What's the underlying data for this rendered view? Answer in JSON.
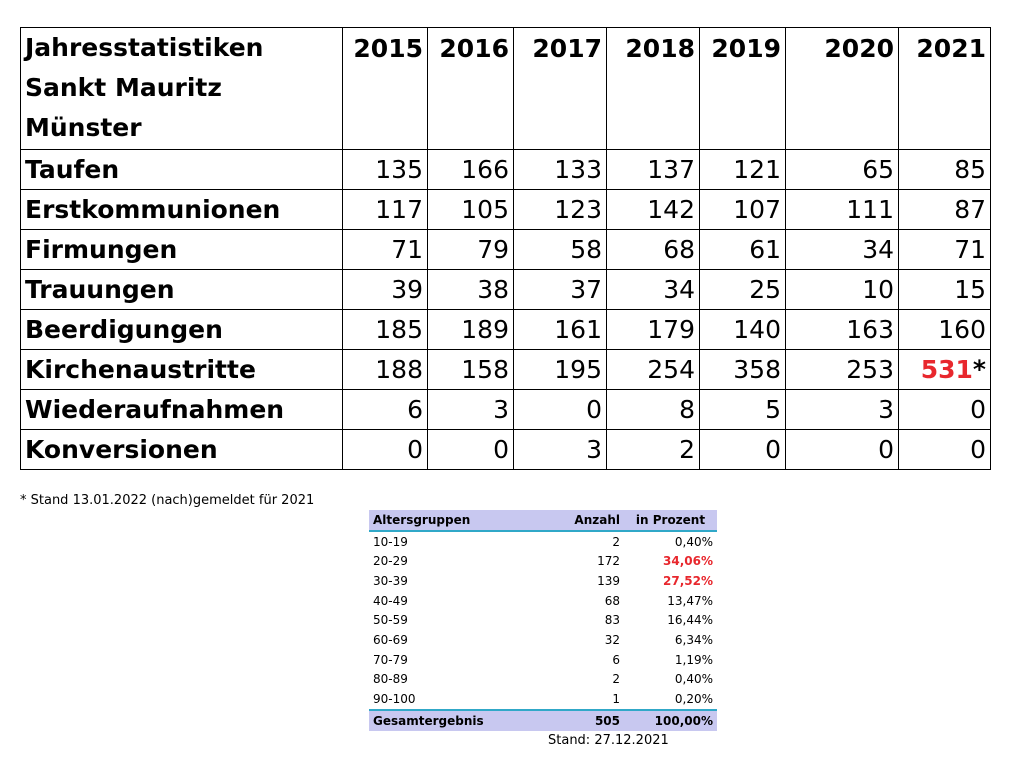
{
  "main_table": {
    "title_lines": [
      "Jahresstatistiken",
      "Sankt Mauritz",
      "Münster"
    ],
    "years": [
      "2015",
      "2016",
      "2017",
      "2018",
      "2019",
      "2020",
      "2021"
    ],
    "rows": [
      {
        "label": "Taufen",
        "values": [
          "135",
          "166",
          "133",
          "137",
          "121",
          "65",
          "85"
        ]
      },
      {
        "label": "Erstkommunionen",
        "values": [
          "117",
          "105",
          "123",
          "142",
          "107",
          "111",
          "87"
        ]
      },
      {
        "label": "Firmungen",
        "values": [
          "71",
          "79",
          "58",
          "68",
          "61",
          "34",
          "71"
        ]
      },
      {
        "label": "Trauungen",
        "values": [
          "39",
          "38",
          "37",
          "34",
          "25",
          "10",
          "15"
        ]
      },
      {
        "label": "Beerdigungen",
        "values": [
          "185",
          "189",
          "161",
          "179",
          "140",
          "163",
          "160"
        ]
      },
      {
        "label": "Kirchenaustritte",
        "values": [
          "188",
          "158",
          "195",
          "254",
          "358",
          "253",
          "531"
        ],
        "last_suffix": "*",
        "last_highlight": "#e8272d"
      },
      {
        "label": "Wiederaufnahmen",
        "values": [
          "6",
          "3",
          "0",
          "8",
          "5",
          "3",
          "0"
        ]
      },
      {
        "label": "Konversionen",
        "values": [
          "0",
          "0",
          "3",
          "2",
          "0",
          "0",
          "0"
        ]
      }
    ]
  },
  "footnote": "* Stand 13.01.2022 (nach)gemeldet für 2021",
  "age_table": {
    "headers": [
      "Altersgruppen",
      "Anzahl",
      "in Prozent"
    ],
    "rows": [
      {
        "group": "10-19",
        "count": "2",
        "percent": "0,40%",
        "highlight": false
      },
      {
        "group": "20-29",
        "count": "172",
        "percent": "34,06%",
        "highlight": true
      },
      {
        "group": "30-39",
        "count": "139",
        "percent": "27,52%",
        "highlight": true
      },
      {
        "group": "40-49",
        "count": "68",
        "percent": "13,47%",
        "highlight": false
      },
      {
        "group": "50-59",
        "count": "83",
        "percent": "16,44%",
        "highlight": false
      },
      {
        "group": "60-69",
        "count": "32",
        "percent": "6,34%",
        "highlight": false
      },
      {
        "group": "70-79",
        "count": "6",
        "percent": "1,19%",
        "highlight": false
      },
      {
        "group": "80-89",
        "count": "2",
        "percent": "0,40%",
        "highlight": false
      },
      {
        "group": "90-100",
        "count": "1",
        "percent": "0,20%",
        "highlight": false
      }
    ],
    "total": {
      "label": "Gesamtergebnis",
      "count": "505",
      "percent": "100,00%"
    },
    "stand": "Stand: 27.12.2021"
  },
  "colors": {
    "highlight_red": "#e8272d",
    "header_fill": "#c8c8f0",
    "header_rule": "#30a8c8"
  }
}
